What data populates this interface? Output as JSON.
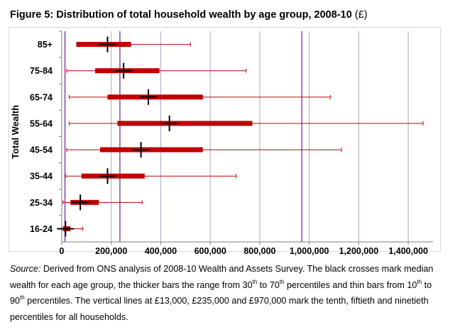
{
  "figure": {
    "title": "Figure 5: Distribution of total household wealth by age group, 2008-10",
    "title_unit": "(£)"
  },
  "chart_data": {
    "type": "box",
    "ylabel": "Total Wealth",
    "xlim": [
      0,
      1500000
    ],
    "xticks": [
      0,
      200000,
      400000,
      600000,
      800000,
      1000000,
      1200000,
      1400000
    ],
    "xtick_labels": [
      "0",
      "200,000",
      "400,000",
      "600,000",
      "800,000",
      "1,000,000",
      "1,200,000",
      "1,400,000"
    ],
    "categories": [
      "85+",
      "75-84",
      "65-74",
      "55-64",
      "45-54",
      "35-44",
      "25-34",
      "16-24"
    ],
    "series": [
      {
        "name": "10th percentile",
        "values": [
          60000,
          20000,
          30000,
          30000,
          20000,
          15000,
          5000,
          0
        ]
      },
      {
        "name": "30th percentile",
        "values": [
          60000,
          135000,
          185000,
          225000,
          155000,
          80000,
          35000,
          5000
        ]
      },
      {
        "name": "Median",
        "values": [
          185000,
          250000,
          350000,
          435000,
          320000,
          185000,
          75000,
          15000
        ]
      },
      {
        "name": "70th percentile",
        "values": [
          280000,
          395000,
          570000,
          770000,
          570000,
          335000,
          150000,
          35000
        ]
      },
      {
        "name": "90th percentile",
        "values": [
          520000,
          745000,
          1085000,
          1460000,
          1130000,
          705000,
          325000,
          85000
        ]
      }
    ],
    "reference_lines": {
      "values": [
        13000,
        235000,
        970000
      ],
      "meaning": [
        "tenth",
        "fiftieth",
        "ninetieth"
      ],
      "color": "#7030a0"
    },
    "grid": true,
    "colors": {
      "box": "#c00000",
      "whisker": "#c00000",
      "median": "#000000",
      "grid": "#b3a2c7",
      "axis": "#7f7f7f"
    }
  },
  "caption": {
    "source_label": "Source:",
    "p1": " Derived from ONS analysis of 2008-10  Wealth and Assets Survey. The black crosses mark median wealth for each age group, the thicker bars the range from 30",
    "sup1": "th",
    "p2": " to 70",
    "sup2": "th",
    "p3": " percentiles and thin bars from 10",
    "sup3": "th",
    "p4": " to 90",
    "sup4": "th",
    "p5": " percentiles.  The vertical lines at £13,000,  £235,000  and £970,000  mark the tenth, fiftieth and ninetieth percentiles for all households."
  }
}
